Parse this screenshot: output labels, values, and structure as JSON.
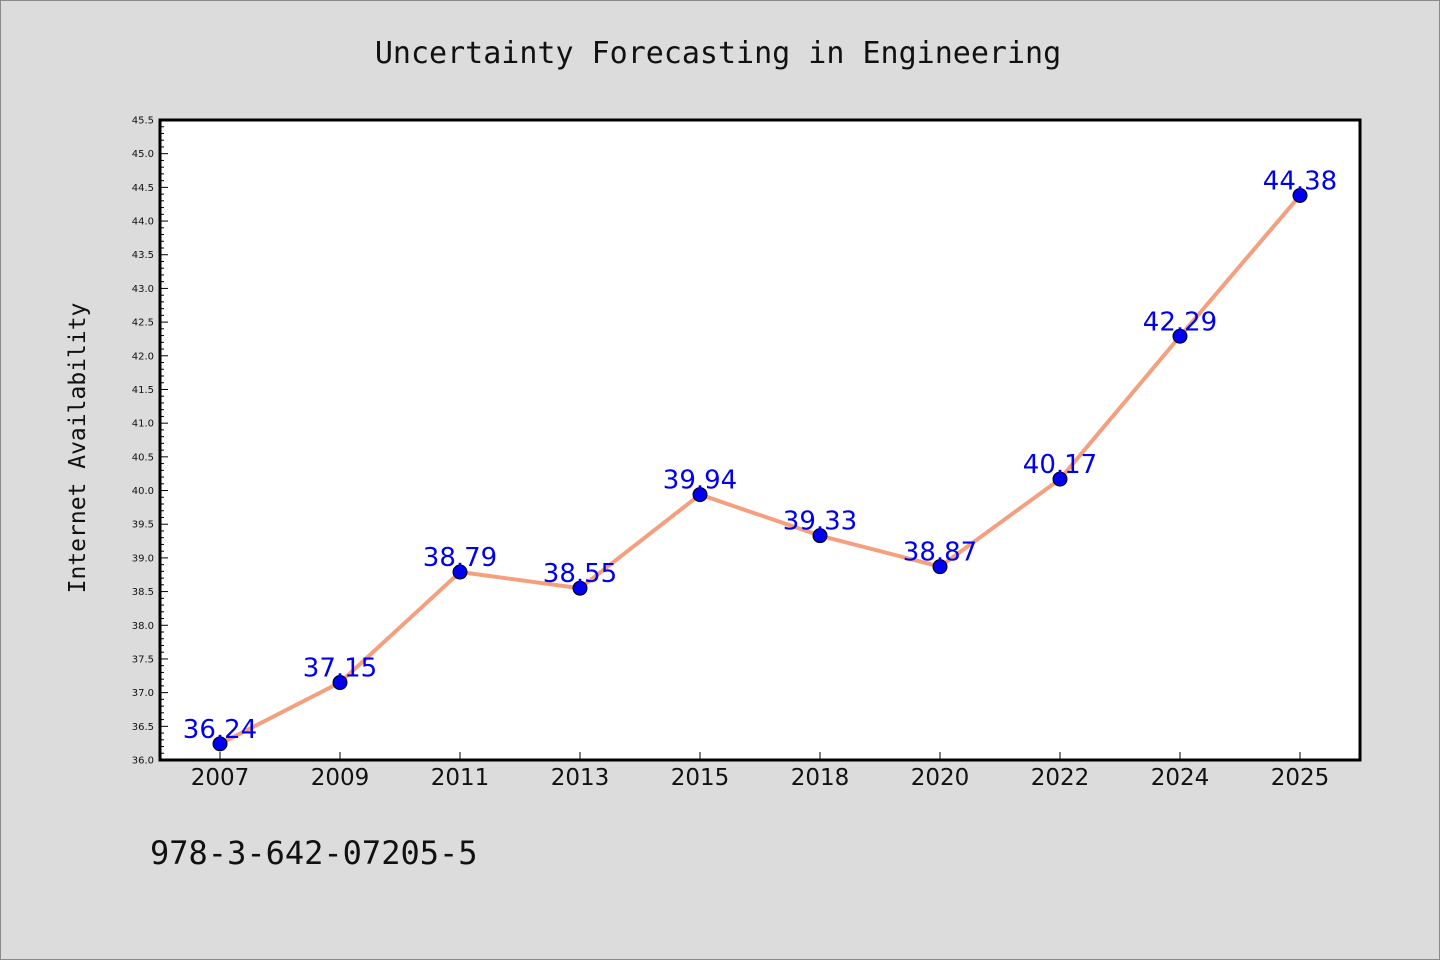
{
  "chart_data": {
    "type": "line",
    "title": "Uncertainty Forecasting in Engineering",
    "xlabel": "",
    "ylabel": "Internet Availability",
    "categories": [
      "2007",
      "2009",
      "2011",
      "2013",
      "2015",
      "2018",
      "2020",
      "2022",
      "2024",
      "2025"
    ],
    "series": [
      {
        "values": [
          36.24,
          37.15,
          38.79,
          38.55,
          39.94,
          39.33,
          38.87,
          40.17,
          42.29,
          44.38
        ]
      }
    ],
    "data_labels": [
      "36.24",
      "37.15",
      "38.79",
      "38.55",
      "39.94",
      "39.33",
      "38.87",
      "40.17",
      "42.29",
      "44.38"
    ],
    "ylim": [
      36.0,
      45.5
    ],
    "y_ticks": [
      "36.0",
      "36.5",
      "37.0",
      "37.5",
      "38.0",
      "38.5",
      "39.0",
      "39.5",
      "40.0",
      "40.5",
      "41.0",
      "41.5",
      "42.0",
      "42.5",
      "43.0",
      "43.5",
      "44.0",
      "44.5",
      "45.0",
      "45.5"
    ],
    "grid": false,
    "legend": "none",
    "line_color": "#f4a07f",
    "marker_color": "#0000ee",
    "label_color": "#0000ee",
    "background_color": "#dcdcdc",
    "plot_background_color": "#ffffff"
  },
  "footer": {
    "isbn": "978-3-642-07205-5"
  }
}
